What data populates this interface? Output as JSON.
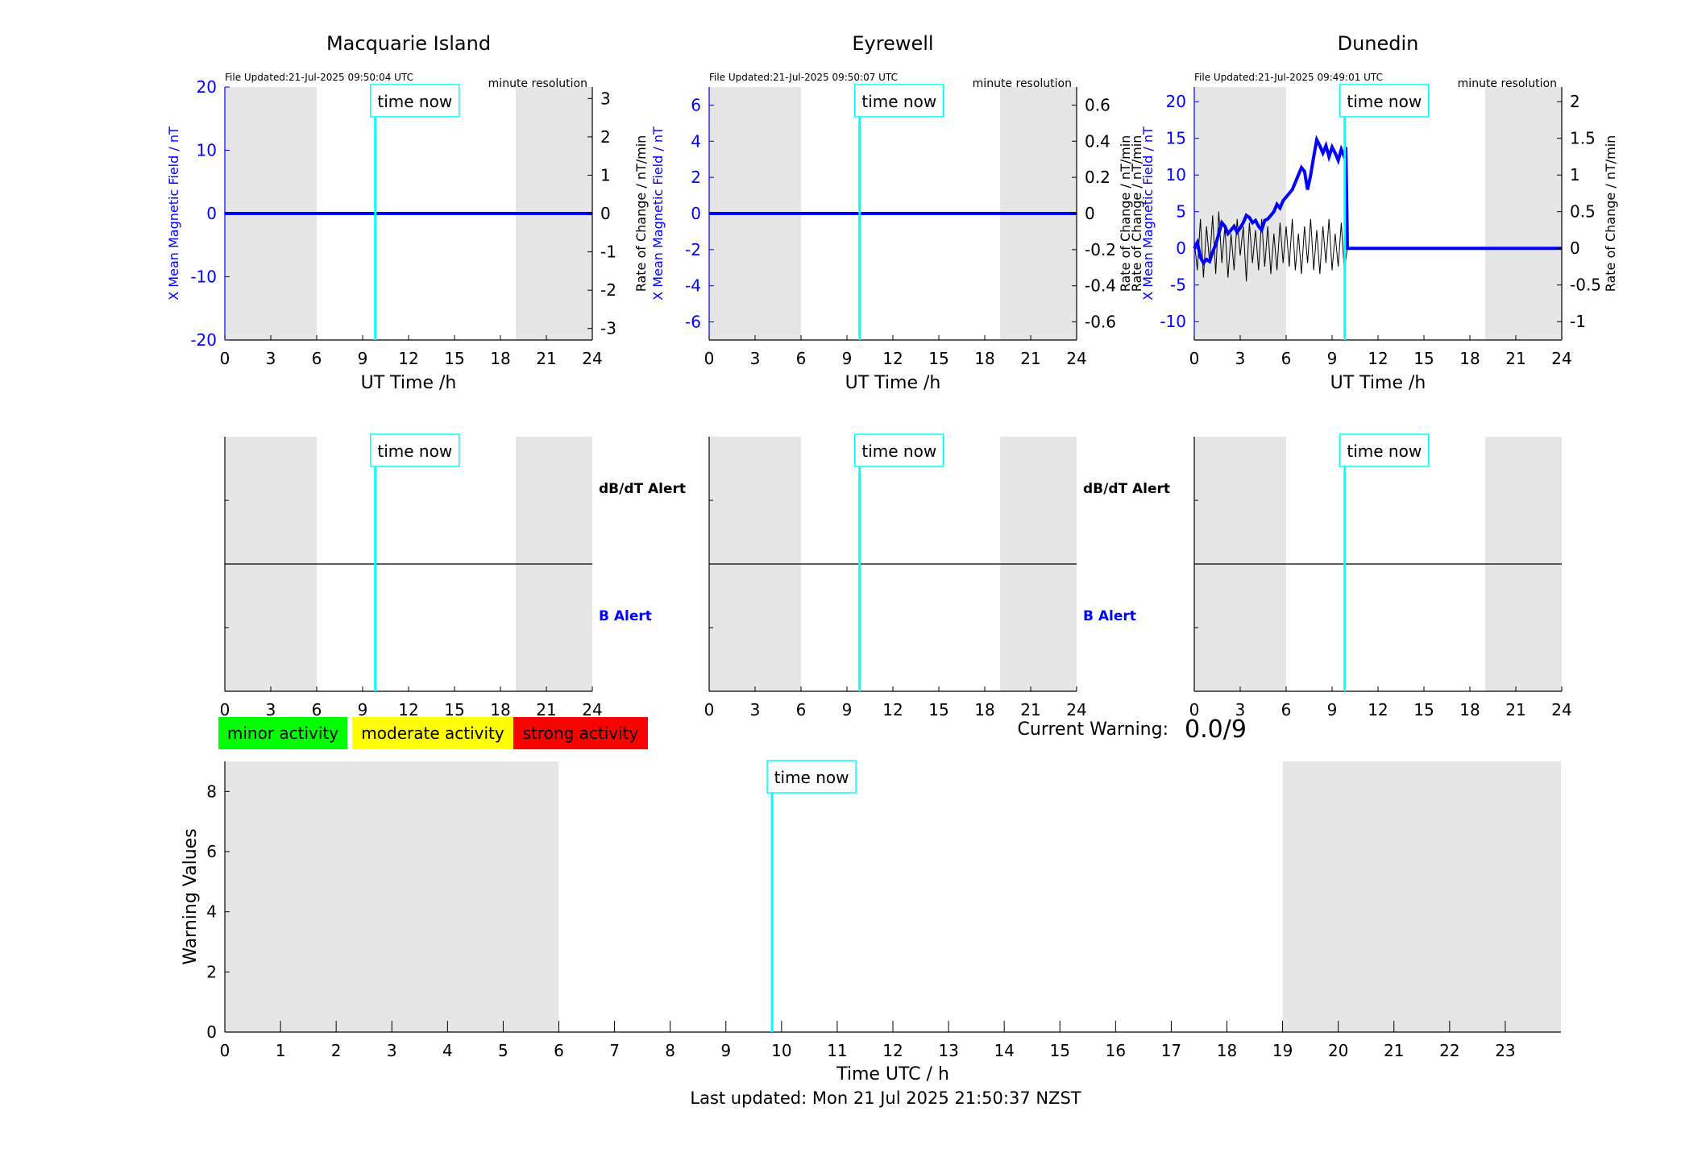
{
  "time_now_label": "time now",
  "x_axis_label": "UT Time /h",
  "file_resolution": "minute resolution",
  "left_axis_label": "X Mean Magnetic Field / nT",
  "right_axis_label": "Rate of Change / nT/min",
  "alert_labels": {
    "dbdt": "dB/dT Alert",
    "b": "B Alert"
  },
  "legend": [
    {
      "label": "minor activity",
      "color": "#00ff00"
    },
    {
      "label": "moderate activity",
      "color": "#ffff00"
    },
    {
      "label": "strong activity",
      "color": "#ff0000"
    }
  ],
  "current_warning": {
    "label": "Current Warning:",
    "value": "0.0/9"
  },
  "last_updated": "Last updated: Mon 21 Jul 2025 21:50:37 NZST",
  "colors": {
    "field": "#0000ff",
    "rate": "#000000",
    "time_now": "#00ffff",
    "night_shade": "#e6e6e6",
    "axis_left": "#0000ff"
  },
  "chart_data": [
    {
      "type": "line",
      "title": "Macquarie Island",
      "file_updated": "File Updated:21-Jul-2025 09:50:04 UTC",
      "xlabel": "UT Time /h",
      "ylabel": "X Mean Magnetic Field / nT",
      "ylabel_right": "Rate of Change / nT/min",
      "xlim": [
        0,
        24
      ],
      "xticks": [
        0,
        3,
        6,
        9,
        12,
        15,
        18,
        21,
        24
      ],
      "ylim": [
        -20,
        20
      ],
      "yticks": [
        -20,
        -10,
        0,
        10,
        20
      ],
      "ylim_right": [
        -3.3,
        3.3
      ],
      "yticks_right": [
        -3,
        -2,
        -1,
        0,
        1,
        2,
        3
      ],
      "shaded_x": [
        [
          0,
          6
        ],
        [
          19,
          24
        ]
      ],
      "time_now": 9.83,
      "field": {
        "x": [
          0,
          24
        ],
        "y": [
          0,
          0
        ]
      },
      "rate": {
        "x": [
          0,
          24
        ],
        "y": [
          0,
          0
        ]
      }
    },
    {
      "type": "line",
      "title": "Eyrewell",
      "file_updated": "File Updated:21-Jul-2025 09:50:07 UTC",
      "xlabel": "UT Time /h",
      "ylabel": "X Mean Magnetic Field / nT",
      "ylabel_right": "Rate of Change / nT/min",
      "xlim": [
        0,
        24
      ],
      "xticks": [
        0,
        3,
        6,
        9,
        12,
        15,
        18,
        21,
        24
      ],
      "ylim": [
        -7,
        7
      ],
      "yticks": [
        -6,
        -4,
        -2,
        0,
        2,
        4,
        6
      ],
      "ylim_right": [
        -0.7,
        0.7
      ],
      "yticks_right": [
        -0.6,
        -0.4,
        -0.2,
        0,
        0.2,
        0.4,
        0.6
      ],
      "shaded_x": [
        [
          0,
          6
        ],
        [
          19,
          24
        ]
      ],
      "time_now": 9.83,
      "field": {
        "x": [
          0,
          24
        ],
        "y": [
          0,
          0
        ]
      },
      "rate": {
        "x": [
          0,
          24
        ],
        "y": [
          0,
          0
        ]
      }
    },
    {
      "type": "line",
      "title": "Dunedin",
      "file_updated": "File Updated:21-Jul-2025 09:49:01 UTC",
      "xlabel": "UT Time /h",
      "ylabel": "Rate of Change / nT/min X Mean Magnetic Field / nT",
      "ylabel_right": "Rate of Change / nT/min",
      "xlim": [
        0,
        24
      ],
      "xticks": [
        0,
        3,
        6,
        9,
        12,
        15,
        18,
        21,
        24
      ],
      "ylim": [
        -12.5,
        22
      ],
      "yticks": [
        -10,
        -5,
        0,
        5,
        10,
        15,
        20
      ],
      "ylim_right": [
        -1.25,
        2.2
      ],
      "yticks_right": [
        -1,
        -0.5,
        0,
        0.5,
        1,
        1.5,
        2
      ],
      "shaded_x": [
        [
          0,
          6
        ],
        [
          19,
          24
        ]
      ],
      "time_now": 9.83,
      "field": {
        "x": [
          0,
          0.2,
          0.4,
          0.6,
          0.8,
          1.0,
          1.2,
          1.4,
          1.6,
          1.8,
          2.0,
          2.2,
          2.4,
          2.6,
          2.8,
          3.0,
          3.2,
          3.4,
          3.6,
          3.8,
          4.0,
          4.2,
          4.4,
          4.6,
          4.8,
          5.0,
          5.2,
          5.4,
          5.6,
          5.8,
          6.0,
          6.2,
          6.4,
          6.6,
          6.8,
          7.0,
          7.2,
          7.4,
          7.6,
          7.8,
          8.0,
          8.2,
          8.4,
          8.6,
          8.8,
          9.0,
          9.2,
          9.4,
          9.6,
          9.8,
          9.9,
          10.0,
          24
        ],
        "y": [
          0,
          0.8,
          -1.2,
          -2.0,
          -1.5,
          -1.8,
          -0.5,
          0.5,
          2.0,
          3.5,
          3.0,
          2.0,
          2.5,
          3.0,
          2.2,
          2.8,
          3.5,
          4.5,
          4.2,
          3.5,
          3.8,
          3.0,
          2.5,
          3.8,
          4.0,
          4.5,
          5.0,
          6.0,
          5.5,
          6.5,
          7.0,
          7.5,
          8.0,
          9.0,
          10.0,
          11.0,
          10.5,
          8.0,
          10.0,
          12.5,
          14.8,
          14.0,
          13.0,
          14.0,
          12.5,
          13.8,
          13.0,
          12.0,
          13.5,
          12.5,
          13.8,
          0,
          0
        ]
      },
      "rate": {
        "x": [
          0,
          0.2,
          0.4,
          0.6,
          0.8,
          1.0,
          1.2,
          1.4,
          1.6,
          1.8,
          2.0,
          2.2,
          2.4,
          2.6,
          2.8,
          3.0,
          3.2,
          3.4,
          3.6,
          3.8,
          4.0,
          4.2,
          4.4,
          4.6,
          4.8,
          5.0,
          5.2,
          5.4,
          5.6,
          5.8,
          6.0,
          6.2,
          6.4,
          6.6,
          6.8,
          7.0,
          7.2,
          7.4,
          7.6,
          7.8,
          8.0,
          8.2,
          8.4,
          8.6,
          8.8,
          9.0,
          9.2,
          9.4,
          9.6,
          9.8,
          10.0,
          24
        ],
        "y": [
          0.1,
          -0.3,
          0.4,
          -0.4,
          0.3,
          -0.2,
          0.45,
          -0.35,
          0.5,
          -0.2,
          0.3,
          -0.4,
          0.2,
          -0.3,
          0.4,
          -0.1,
          0.3,
          -0.45,
          0.35,
          -0.2,
          0.25,
          -0.3,
          0.4,
          -0.25,
          0.3,
          -0.35,
          0.2,
          -0.3,
          0.35,
          -0.2,
          0.3,
          -0.25,
          0.4,
          -0.3,
          0.2,
          -0.35,
          0.3,
          -0.2,
          0.4,
          -0.3,
          0.25,
          -0.35,
          0.3,
          -0.2,
          0.4,
          -0.3,
          0.2,
          -0.25,
          0.35,
          -0.3,
          0,
          0
        ]
      }
    }
  ],
  "warning_chart": {
    "type": "line",
    "xlabel": "Time UTC / h",
    "ylabel": "Warning Values",
    "xlim": [
      0,
      24
    ],
    "xticks": [
      0,
      1,
      2,
      3,
      4,
      5,
      6,
      7,
      8,
      9,
      10,
      11,
      12,
      13,
      14,
      15,
      16,
      17,
      18,
      19,
      20,
      21,
      22,
      23
    ],
    "ylim": [
      0,
      9
    ],
    "yticks": [
      0,
      2,
      4,
      6,
      8
    ],
    "shaded_x": [
      [
        0,
        6
      ],
      [
        19,
        24
      ]
    ],
    "time_now": 9.83
  }
}
